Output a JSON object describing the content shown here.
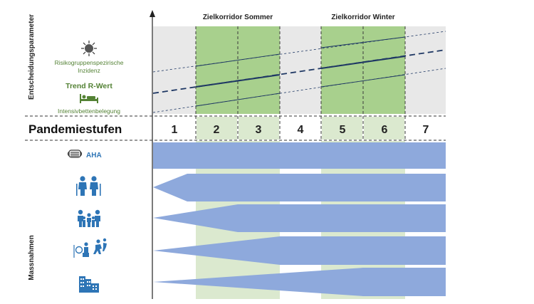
{
  "colors": {
    "grid_bg": "#e8e8e8",
    "corridor": "#a8d08d",
    "corridor_light": "#dbe9cf",
    "band": "#8ea9dc",
    "navy": "#1f3864",
    "green_text": "#548235",
    "icon_blue": "#2e75b6",
    "axis": "#222222"
  },
  "side_labels": {
    "top": "Entscheidungsparameter",
    "bottom": "Massnahmen"
  },
  "parameters": [
    {
      "icon": "virus-icon",
      "label_line1": "Risikogruppenspezirische",
      "label_line2": "Inzidenz"
    },
    {
      "icon": "",
      "label": "Trend R-Wert"
    },
    {
      "icon": "hospital-bed-icon",
      "label": "Intensivbettenbelegung"
    }
  ],
  "corridors": {
    "summer": "Zielkorridor Sommer",
    "winter": "Zielkorridor Winter"
  },
  "stages_title": "Pandemiestufen",
  "stages": [
    "1",
    "2",
    "3",
    "4",
    "5",
    "6",
    "7"
  ],
  "measures": [
    {
      "icon": "face-mask-icon",
      "label": "AHA"
    },
    {
      "icon": "elderly-people-icon",
      "label": ""
    },
    {
      "icon": "family-icon",
      "label": ""
    },
    {
      "icon": "event-music-icon",
      "label": ""
    },
    {
      "icon": "city-buildings-icon",
      "label": ""
    }
  ]
}
